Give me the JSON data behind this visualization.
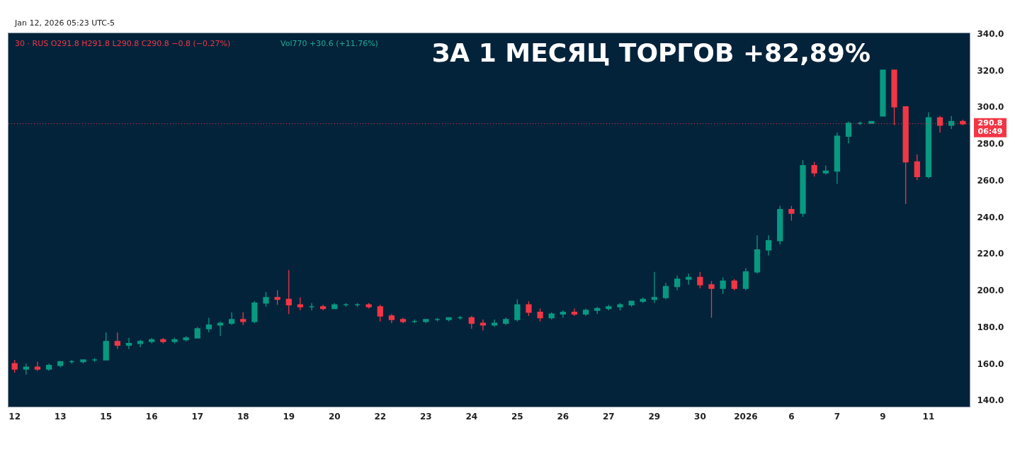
{
  "chart_data": {
    "type": "candlestick",
    "title": "ЗА 1 МЕСЯЦ ТОРГОВ +82,89%",
    "categories": [
      "12",
      null,
      null,
      null,
      "13",
      null,
      null,
      null,
      "15",
      null,
      null,
      null,
      "16",
      null,
      null,
      null,
      "17",
      null,
      null,
      null,
      "18",
      null,
      null,
      null,
      "19",
      null,
      null,
      null,
      "20",
      null,
      null,
      null,
      "22",
      null,
      null,
      null,
      "23",
      null,
      null,
      null,
      "24",
      null,
      null,
      null,
      "25",
      null,
      null,
      null,
      "26",
      null,
      null,
      null,
      "27",
      null,
      null,
      null,
      "29",
      null,
      null,
      null,
      "30",
      null,
      null,
      null,
      "2026",
      null,
      null,
      null,
      "6",
      null,
      null,
      null,
      "7",
      null,
      null,
      null,
      "9",
      null,
      null,
      null,
      "11",
      null,
      null,
      null
    ],
    "ohlc": [
      [
        160,
        162,
        155,
        157
      ],
      [
        157,
        160,
        154,
        158
      ],
      [
        158,
        161,
        156,
        157
      ],
      [
        157,
        160,
        156,
        159
      ],
      [
        159,
        161,
        158,
        161
      ],
      [
        161,
        162,
        160,
        161
      ],
      [
        161,
        162,
        160,
        162
      ],
      [
        162,
        163,
        161,
        162
      ],
      [
        162,
        177,
        162,
        172
      ],
      [
        172,
        177,
        168,
        170
      ],
      [
        170,
        174,
        168,
        171
      ],
      [
        171,
        173,
        169,
        172
      ],
      [
        172,
        174,
        171,
        173
      ],
      [
        173,
        174,
        171,
        172
      ],
      [
        172,
        174,
        171,
        173
      ],
      [
        173,
        175,
        172,
        174
      ],
      [
        174,
        180,
        174,
        179
      ],
      [
        179,
        185,
        177,
        181
      ],
      [
        181,
        183,
        175,
        182
      ],
      [
        182,
        188,
        181,
        184
      ],
      [
        184,
        188,
        181,
        183
      ],
      [
        183,
        194,
        182,
        193
      ],
      [
        193,
        199,
        191,
        196
      ],
      [
        196,
        200,
        192,
        195
      ],
      [
        195,
        211,
        187,
        192
      ],
      [
        192,
        196,
        189,
        191
      ],
      [
        191,
        193,
        189,
        191
      ],
      [
        191,
        192,
        189,
        190
      ],
      [
        190,
        193,
        190,
        192
      ],
      [
        192,
        193,
        191,
        192
      ],
      [
        192,
        193,
        191,
        192
      ],
      [
        192,
        193,
        190,
        191
      ],
      [
        191,
        192,
        183,
        186
      ],
      [
        186,
        187,
        182,
        184
      ],
      [
        184,
        185,
        182,
        183
      ],
      [
        183,
        184,
        182,
        183
      ],
      [
        183,
        184,
        182,
        184
      ],
      [
        184,
        185,
        183,
        184
      ],
      [
        184,
        185,
        183,
        185
      ],
      [
        185,
        186,
        184,
        185
      ],
      [
        185,
        186,
        179,
        182
      ],
      [
        182,
        184,
        178,
        181
      ],
      [
        181,
        184,
        180,
        182
      ],
      [
        182,
        185,
        181,
        184
      ],
      [
        184,
        195,
        183,
        192
      ],
      [
        192,
        194,
        186,
        188
      ],
      [
        188,
        190,
        183,
        185
      ],
      [
        185,
        188,
        184,
        187
      ],
      [
        187,
        189,
        185,
        188
      ],
      [
        188,
        190,
        186,
        187
      ],
      [
        187,
        190,
        186,
        189
      ],
      [
        189,
        191,
        187,
        190
      ],
      [
        190,
        192,
        189,
        191
      ],
      [
        191,
        193,
        189,
        192
      ],
      [
        192,
        194,
        191,
        194
      ],
      [
        194,
        196,
        193,
        195
      ],
      [
        195,
        210,
        193,
        196
      ],
      [
        196,
        204,
        195,
        202
      ],
      [
        202,
        208,
        200,
        206
      ],
      [
        206,
        209,
        203,
        207
      ],
      [
        207,
        210,
        201,
        203
      ],
      [
        203,
        205,
        185,
        201
      ],
      [
        201,
        207,
        198,
        205
      ],
      [
        205,
        206,
        200,
        201
      ],
      [
        201,
        212,
        200,
        210
      ],
      [
        210,
        230,
        209,
        222
      ],
      [
        222,
        230,
        219,
        227
      ],
      [
        227,
        246,
        225,
        244
      ],
      [
        244,
        246,
        238,
        242
      ],
      [
        242,
        271,
        240,
        268
      ],
      [
        268,
        270,
        262,
        264
      ],
      [
        264,
        268,
        263,
        265
      ],
      [
        265,
        286,
        258,
        284
      ],
      [
        284,
        292,
        280,
        291
      ],
      [
        291,
        292,
        290,
        291
      ],
      [
        291,
        292,
        291,
        292
      ],
      [
        295,
        320,
        295,
        320
      ],
      [
        320,
        320,
        290,
        300
      ],
      [
        300,
        300,
        247,
        270
      ],
      [
        270,
        274,
        260,
        262
      ],
      [
        262,
        297,
        261,
        294
      ],
      [
        294,
        295,
        286,
        290
      ],
      [
        290,
        295,
        288,
        292
      ],
      [
        292,
        293,
        290,
        290.8
      ]
    ],
    "colors": [
      "#f23645",
      "#089981",
      "#f23645",
      "#089981",
      "#089981",
      "#089981",
      "#089981",
      "#089981",
      "#089981",
      "#f23645",
      "#089981",
      "#089981",
      "#089981",
      "#f23645",
      "#089981",
      "#089981",
      "#089981",
      "#089981",
      "#089981",
      "#089981",
      "#f23645",
      "#089981",
      "#089981",
      "#f23645",
      "#f23645",
      "#f23645",
      "#089981",
      "#f23645",
      "#089981",
      "#089981",
      "#089981",
      "#f23645",
      "#f23645",
      "#f23645",
      "#f23645",
      "#089981",
      "#089981",
      "#089981",
      "#089981",
      "#089981",
      "#f23645",
      "#f23645",
      "#089981",
      "#089981",
      "#089981",
      "#f23645",
      "#f23645",
      "#089981",
      "#089981",
      "#f23645",
      "#089981",
      "#089981",
      "#089981",
      "#089981",
      "#089981",
      "#089981",
      "#089981",
      "#089981",
      "#089981",
      "#089981",
      "#f23645",
      "#f23645",
      "#089981",
      "#f23645",
      "#089981",
      "#089981",
      "#089981",
      "#089981",
      "#f23645",
      "#089981",
      "#f23645",
      "#089981",
      "#089981",
      "#089981",
      "#089981",
      "#089981",
      "#089981",
      "#f23645",
      "#f23645",
      "#f23645",
      "#089981",
      "#f23645",
      "#089981",
      "#f23645"
    ],
    "ylim": [
      136.5,
      340.5
    ],
    "yticks": [
      {
        "value": 140,
        "label": "140.0"
      },
      {
        "value": 160,
        "label": "160.0"
      },
      {
        "value": 180,
        "label": "180.0"
      },
      {
        "value": 200,
        "label": "200.0"
      },
      {
        "value": 220,
        "label": "220.0"
      },
      {
        "value": 240,
        "label": "240.0"
      },
      {
        "value": 260,
        "label": "260.0"
      },
      {
        "value": 280,
        "label": "280.0"
      },
      {
        "value": 300,
        "label": "300.0"
      },
      {
        "value": 320,
        "label": "320.0"
      },
      {
        "value": 340,
        "label": "340.0"
      }
    ],
    "ref_lines": [
      {
        "axis": "y",
        "value": 290.8,
        "label": "290.8",
        "color": "#f23645",
        "line_style": "dotted"
      }
    ],
    "annotations": [
      "Jan 12, 2026 05:23 UTC-5",
      "30 · RUS  O291.8  H291.8  L290.8  C290.8  −0.8 (−0.27%)",
      "Vol770  +30.6 (+11.76%)",
      "06:49"
    ],
    "grid": false
  }
}
